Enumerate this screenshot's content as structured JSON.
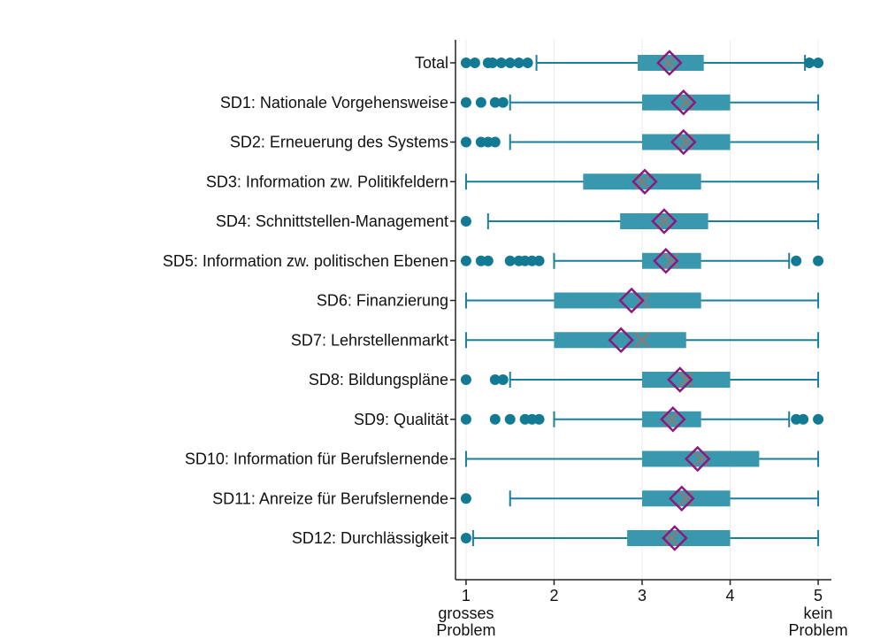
{
  "chart_data": {
    "type": "boxplot",
    "categories": [
      "Total",
      "SD1: Nationale Vorgehensweise",
      "SD2: Erneuerung des Systems",
      "SD3: Information zw. Politikfeldern",
      "SD4: Schnittstellen-Management",
      "SD5: Information zw. politischen Ebenen",
      "SD6: Finanzierung",
      "SD7: Lehrstellenmarkt",
      "SD8: Bildungspläne",
      "SD9: Qualität",
      "SD10: Information für Berufslernende",
      "SD11: Anreize für Berufslernende",
      "SD12: Durchlässigkeit"
    ],
    "whisker_low": [
      1.8,
      1.5,
      1.5,
      1,
      1.25,
      2,
      1,
      1,
      1.5,
      2,
      1,
      1.5,
      1.08
    ],
    "q1": [
      2.95,
      3,
      3,
      2.33,
      2.75,
      3,
      2,
      2,
      3,
      3,
      3,
      3,
      2.83
    ],
    "q3": [
      3.7,
      4,
      4,
      3.67,
      3.75,
      3.67,
      3.67,
      3.5,
      4,
      3.67,
      4.33,
      4,
      4
    ],
    "whisker_high": [
      4.85,
      5,
      5,
      5,
      5,
      4.67,
      5,
      5,
      5,
      4.67,
      5,
      5,
      5
    ],
    "median": [
      3.3,
      3.5,
      3.5,
      3,
      3.25,
      3.33,
      3,
      3,
      3.5,
      3.33,
      3.67,
      3.5,
      3.33
    ],
    "mean": [
      3.31,
      3.47,
      3.47,
      3.03,
      3.25,
      3.27,
      2.88,
      2.76,
      3.43,
      3.35,
      3.63,
      3.45,
      3.37
    ],
    "outliers": [
      [
        1,
        1.1,
        1.25,
        1.3,
        1.4,
        1.5,
        1.6,
        1.7,
        4.9,
        5
      ],
      [
        1,
        1.17,
        1.33,
        1.42
      ],
      [
        1,
        1.17,
        1.25,
        1.33
      ],
      [],
      [
        1
      ],
      [
        1,
        1.17,
        1.25,
        1.5,
        1.6,
        1.67,
        1.75,
        1.83,
        4.75,
        5
      ],
      [],
      [],
      [
        1,
        1.33,
        1.42
      ],
      [
        1,
        1.33,
        1.5,
        1.67,
        1.75,
        1.83,
        4.75,
        4.83,
        5
      ],
      [],
      [
        1
      ],
      [
        1
      ]
    ],
    "box_color": "#3a98ae",
    "whisker_color": "#1a7f99",
    "outlier_color": "#137a94",
    "mean_color": "#8b1a7f",
    "median_color": "#7f7f7f",
    "xlim": [
      0.88,
      5.15
    ],
    "xticks": [
      1,
      2,
      3,
      4,
      5
    ],
    "xtick_notes": [
      {
        "value": 1,
        "label": "grosses Problem"
      },
      {
        "value": 5,
        "label": "kein Problem"
      }
    ],
    "grid": true
  }
}
